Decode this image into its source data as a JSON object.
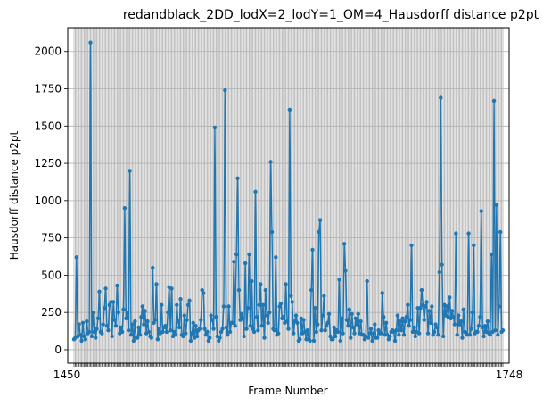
{
  "chart_data": {
    "type": "line",
    "title": "redandblack_2DD_lodX=2_lodY=1_OM=4_Hausdorff distance p2pt",
    "xlabel": "Frame Number",
    "ylabel": "Hausdorff distance p2pt",
    "grid": true,
    "color": "#1f77b4",
    "ylim": [
      -90,
      2160
    ],
    "y_ticks": [
      0,
      250,
      500,
      750,
      1000,
      1250,
      1500,
      1750,
      2000
    ],
    "y_tick_labels": [
      "0",
      "250",
      "500",
      "750",
      "1000",
      "1250",
      "1500",
      "1750",
      "2000"
    ],
    "x_first_tick_label": "1450",
    "x_last_tick_label": "1748",
    "x_range": [
      1450,
      1749
    ],
    "series": [
      {
        "values": [
          70,
          80,
          620,
          90,
          170,
          100,
          60,
          180,
          90,
          70,
          190,
          110,
          120,
          2060,
          90,
          250,
          120,
          80,
          140,
          210,
          390,
          120,
          110,
          170,
          280,
          410,
          160,
          130,
          300,
          320,
          90,
          320,
          200,
          160,
          430,
          250,
          110,
          150,
          120,
          270,
          950,
          210,
          250,
          130,
          1200,
          100,
          170,
          60,
          190,
          80,
          80,
          150,
          100,
          220,
          290,
          170,
          260,
          110,
          190,
          120,
          90,
          80,
          550,
          180,
          200,
          440,
          70,
          140,
          110,
          300,
          120,
          150,
          160,
          120,
          250,
          420,
          130,
          410,
          90,
          120,
          100,
          300,
          190,
          150,
          340,
          100,
          90,
          230,
          110,
          200,
          300,
          330,
          60,
          110,
          180,
          80,
          160,
          90,
          130,
          140,
          200,
          400,
          380,
          140,
          100,
          120,
          60,
          80,
          230,
          200,
          140,
          1490,
          220,
          90,
          60,
          80,
          120,
          140,
          290,
          1740,
          150,
          100,
          290,
          120,
          180,
          180,
          590,
          160,
          640,
          1150,
          400,
          200,
          240,
          210,
          90,
          580,
          140,
          280,
          640,
          160,
          460,
          140,
          120,
          1060,
          220,
          130,
          300,
          440,
          160,
          300,
          80,
          400,
          230,
          180,
          250,
          1260,
          790,
          140,
          130,
          620,
          100,
          110,
          290,
          310,
          210,
          220,
          180,
          440,
          190,
          140,
          1610,
          360,
          320,
          110,
          190,
          230,
          180,
          60,
          70,
          210,
          110,
          200,
          120,
          70,
          130,
          70,
          60,
          400,
          670,
          60,
          280,
          120,
          170,
          790,
          870,
          130,
          230,
          360,
          130,
          160,
          180,
          240,
          90,
          70,
          70,
          150,
          90,
          130,
          120,
          470,
          60,
          210,
          110,
          710,
          530,
          200,
          160,
          270,
          80,
          240,
          150,
          110,
          210,
          170,
          240,
          110,
          190,
          100,
          100,
          70,
          90,
          460,
          80,
          110,
          140,
          60,
          110,
          170,
          80,
          80,
          130,
          110,
          110,
          380,
          220,
          100,
          180,
          100,
          70,
          90,
          120,
          130,
          120,
          60,
          130,
          230,
          100,
          190,
          130,
          210,
          100,
          190,
          220,
          300,
          160,
          200,
          700,
          120,
          150,
          90,
          120,
          280,
          110,
          280,
          400,
          300,
          200,
          290,
          320,
          110,
          260,
          180,
          290,
          100,
          120,
          170,
          150,
          100,
          520,
          1690,
          570,
          90,
          300,
          230,
          290,
          220,
          350,
          210,
          260,
          220,
          170,
          780,
          100,
          230,
          170,
          190,
          80,
          270,
          120,
          110,
          100,
          780,
          100,
          140,
          250,
          700,
          110,
          120,
          120,
          160,
          220,
          930,
          150,
          90,
          160,
          120,
          190,
          110,
          100,
          640,
          120,
          1670,
          130,
          970,
          100,
          290,
          790,
          120,
          130
        ],
        "dense_grid_every_frame": true
      }
    ]
  }
}
